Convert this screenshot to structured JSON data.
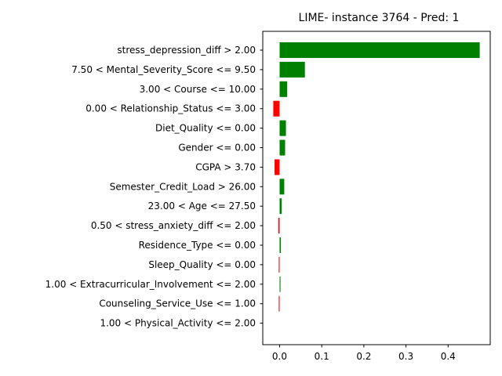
{
  "chart_data": {
    "type": "bar",
    "orientation": "horizontal",
    "title": "LIME- instance 3764 - Pred: 1",
    "xlabel": "",
    "ylabel": "",
    "xlim": [
      -0.04,
      0.5
    ],
    "xticks": [
      "0.0",
      "0.1",
      "0.2",
      "0.3",
      "0.4"
    ],
    "xtick_values": [
      0.0,
      0.1,
      0.2,
      0.3,
      0.4
    ],
    "grid": false,
    "positive_color": "#008000",
    "negative_color": "#ff0000",
    "categories": [
      "stress_depression_diff > 2.00",
      "7.50 < Mental_Severity_Score <= 9.50",
      "3.00 < Course <= 10.00",
      "0.00 < Relationship_Status <= 3.00",
      "Diet_Quality <= 0.00",
      "Gender <= 0.00",
      "CGPA > 3.70",
      "Semester_Credit_Load > 26.00",
      "23.00 < Age <= 27.50",
      "0.50 < stress_anxiety_diff <= 2.00",
      "Residence_Type <= 0.00",
      "Sleep_Quality <= 0.00",
      "1.00 < Extracurricular_Involvement <= 2.00",
      "Counseling_Service_Use <= 1.00",
      "1.00 < Physical_Activity <= 2.00"
    ],
    "values": [
      0.475,
      0.06,
      0.018,
      -0.015,
      0.015,
      0.013,
      -0.012,
      0.011,
      0.005,
      -0.003,
      0.003,
      -0.002,
      0.002,
      -0.002,
      0.0
    ]
  }
}
